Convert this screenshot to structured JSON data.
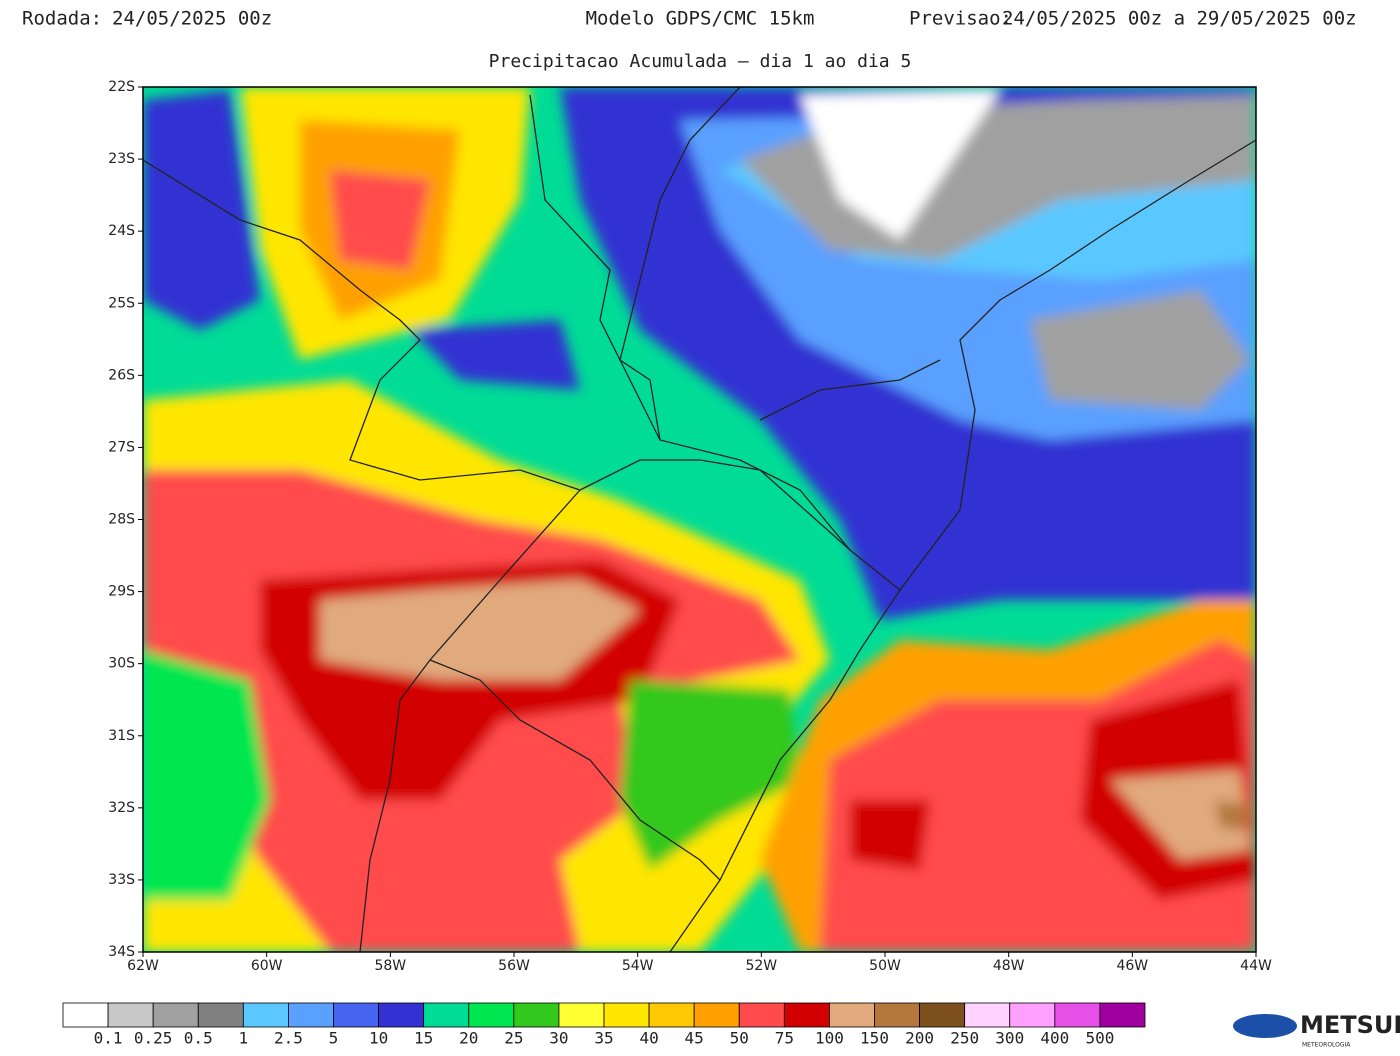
{
  "header": {
    "run_label": "Rodada:",
    "run": "24/05/2025 00z",
    "model": "Modelo GDPS/CMC 15km",
    "forecast_label": "Previsao:",
    "forecast": "24/05/2025 00z a 29/05/2025 00z"
  },
  "subtitle": "Precipitacao Acumulada – dia 1 ao dia 5",
  "map": {
    "lat_labels": [
      "22S",
      "23S",
      "24S",
      "25S",
      "26S",
      "27S",
      "28S",
      "29S",
      "30S",
      "31S",
      "32S",
      "33S",
      "34S"
    ],
    "lon_labels": [
      "62W",
      "60W",
      "58W",
      "56W",
      "54W",
      "52W",
      "50W",
      "48W",
      "46W",
      "44W"
    ]
  },
  "legend": {
    "colors": [
      "#ffffff",
      "#c8c8c8",
      "#a0a0a0",
      "#808080",
      "#5ac8ff",
      "#5aa0ff",
      "#4664f0",
      "#3232d2",
      "#00dc96",
      "#00e650",
      "#32c81e",
      "#ffff32",
      "#ffe600",
      "#ffc800",
      "#ffa000",
      "#ff4b4b",
      "#d20000",
      "#e1aa7d",
      "#b4783c",
      "#7d501e",
      "#ffd2ff",
      "#ffa0ff",
      "#e650e6",
      "#a000a0"
    ],
    "labels": [
      "0.1",
      "0.25",
      "0.5",
      "1",
      "2.5",
      "5",
      "10",
      "15",
      "20",
      "25",
      "30",
      "35",
      "40",
      "45",
      "50",
      "75",
      "100",
      "150",
      "200",
      "250",
      "300",
      "400",
      "500"
    ]
  },
  "logo": {
    "text": "METSUL",
    "subtext": "METEOROLOGIA"
  }
}
